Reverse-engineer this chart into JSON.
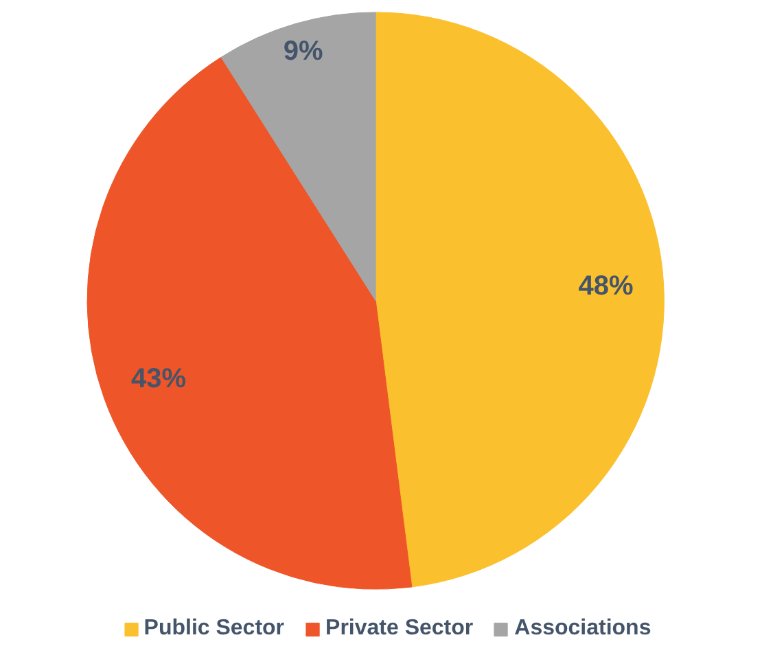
{
  "chart_data": {
    "type": "pie",
    "categories": [
      "Public Sector",
      "Private Sector",
      "Associations"
    ],
    "values": [
      48,
      43,
      9
    ],
    "colors": [
      "#fbc02d",
      "#ee5528",
      "#a5a5a5"
    ],
    "value_labels": [
      "48%",
      "43%",
      "9%"
    ],
    "legend": "bottom"
  }
}
